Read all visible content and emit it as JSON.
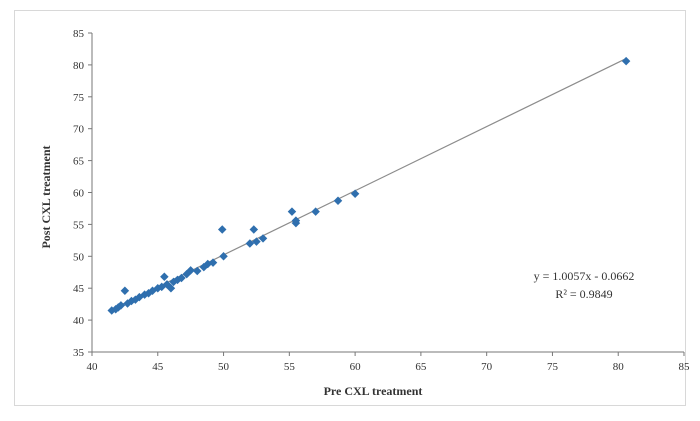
{
  "chart_data": {
    "type": "scatter",
    "title": "",
    "xlabel": "Pre CXL treatment",
    "ylabel": "Post CXL treatment",
    "xlim": [
      40,
      85
    ],
    "ylim": [
      35,
      85
    ],
    "xticks": [
      40,
      45,
      50,
      55,
      60,
      65,
      70,
      75,
      80,
      85
    ],
    "yticks": [
      35,
      40,
      45,
      50,
      55,
      60,
      65,
      70,
      75,
      80,
      85
    ],
    "grid": false,
    "legend": "none",
    "marker_color": "#2f6fae",
    "trendline_color": "#8c8c8c",
    "trendline": {
      "slope": 1.0057,
      "intercept": -0.0662,
      "equation": "y = 1.0057x - 0.0662",
      "r_squared": "R² = 0.9849"
    },
    "points": [
      {
        "x": 41.5,
        "y": 41.5
      },
      {
        "x": 41.8,
        "y": 41.7
      },
      {
        "x": 42.0,
        "y": 42.0
      },
      {
        "x": 42.2,
        "y": 42.3
      },
      {
        "x": 42.5,
        "y": 44.6
      },
      {
        "x": 42.7,
        "y": 42.6
      },
      {
        "x": 43.0,
        "y": 43.0
      },
      {
        "x": 43.3,
        "y": 43.2
      },
      {
        "x": 43.6,
        "y": 43.6
      },
      {
        "x": 44.0,
        "y": 44.0
      },
      {
        "x": 44.3,
        "y": 44.2
      },
      {
        "x": 44.6,
        "y": 44.6
      },
      {
        "x": 45.0,
        "y": 45.0
      },
      {
        "x": 45.3,
        "y": 45.2
      },
      {
        "x": 45.5,
        "y": 46.8
      },
      {
        "x": 45.7,
        "y": 45.6
      },
      {
        "x": 46.0,
        "y": 45.0
      },
      {
        "x": 46.2,
        "y": 46.0
      },
      {
        "x": 46.5,
        "y": 46.3
      },
      {
        "x": 46.8,
        "y": 46.6
      },
      {
        "x": 47.2,
        "y": 47.2
      },
      {
        "x": 47.5,
        "y": 47.8
      },
      {
        "x": 48.0,
        "y": 47.7
      },
      {
        "x": 48.5,
        "y": 48.3
      },
      {
        "x": 48.8,
        "y": 48.8
      },
      {
        "x": 49.2,
        "y": 49.0
      },
      {
        "x": 49.9,
        "y": 54.2
      },
      {
        "x": 50.0,
        "y": 50.0
      },
      {
        "x": 52.0,
        "y": 52.0
      },
      {
        "x": 52.3,
        "y": 54.2
      },
      {
        "x": 52.5,
        "y": 52.3
      },
      {
        "x": 53.0,
        "y": 52.8
      },
      {
        "x": 55.2,
        "y": 57.0
      },
      {
        "x": 55.5,
        "y": 55.2
      },
      {
        "x": 55.5,
        "y": 55.6
      },
      {
        "x": 57.0,
        "y": 57.0
      },
      {
        "x": 58.7,
        "y": 58.7
      },
      {
        "x": 60.0,
        "y": 59.8
      },
      {
        "x": 80.6,
        "y": 80.6
      }
    ]
  }
}
